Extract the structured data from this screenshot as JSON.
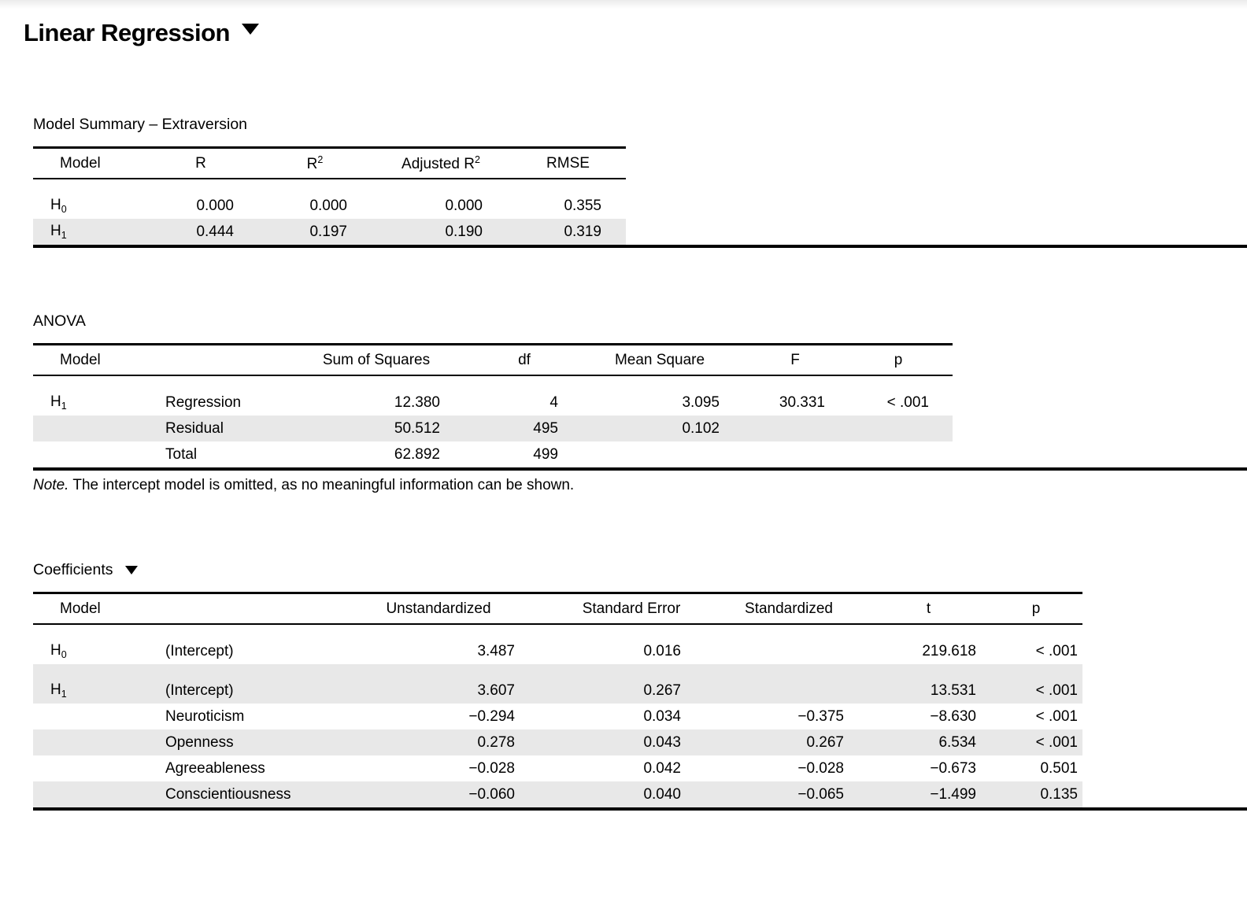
{
  "page": {
    "title": "Linear Regression"
  },
  "model_summary": {
    "title": "Model Summary – Extraversion",
    "headers": {
      "model": "Model",
      "r": "R",
      "r2": {
        "base": "R",
        "sup": "2"
      },
      "adj_r2": {
        "base": "Adjusted R",
        "sup": "2"
      },
      "rmse": "RMSE"
    },
    "rows": [
      {
        "model": {
          "base": "H",
          "sub": "0"
        },
        "r": "0.000",
        "r2": "0.000",
        "adj_r2": "0.000",
        "rmse": "0.355"
      },
      {
        "model": {
          "base": "H",
          "sub": "1"
        },
        "r": "0.444",
        "r2": "0.197",
        "adj_r2": "0.190",
        "rmse": "0.319"
      }
    ]
  },
  "anova": {
    "title": "ANOVA",
    "headers": {
      "model": "Model",
      "ss": "Sum of Squares",
      "df": "df",
      "ms": "Mean Square",
      "f": "F",
      "p": "p"
    },
    "rows": [
      {
        "model": {
          "base": "H",
          "sub": "1"
        },
        "term": "Regression",
        "ss": "12.380",
        "df": "4",
        "ms": "3.095",
        "f": "30.331",
        "p": "< .001"
      },
      {
        "term": "Residual",
        "ss": "50.512",
        "df": "495",
        "ms": "0.102"
      },
      {
        "term": "Total",
        "ss": "62.892",
        "df": "499"
      }
    ],
    "note_label": "Note.",
    "note_text": " The intercept model is omitted, as no meaningful information can be shown."
  },
  "coefficients": {
    "title": "Coefficients",
    "headers": {
      "model": "Model",
      "unstd": "Unstandardized",
      "se": "Standard Error",
      "std": "Standardized",
      "t": "t",
      "p": "p"
    },
    "rows": [
      {
        "model": {
          "base": "H",
          "sub": "0"
        },
        "term": "(Intercept)",
        "unstd": "3.487",
        "se": "0.016",
        "std": "",
        "t": "219.618",
        "p": "< .001"
      },
      {
        "model": {
          "base": "H",
          "sub": "1"
        },
        "term": "(Intercept)",
        "unstd": "3.607",
        "se": "0.267",
        "std": "",
        "t": "13.531",
        "p": "< .001"
      },
      {
        "term": "Neuroticism",
        "unstd": "−0.294",
        "se": "0.034",
        "std": "−0.375",
        "t": "−8.630",
        "p": "< .001"
      },
      {
        "term": "Openness",
        "unstd": "0.278",
        "se": "0.043",
        "std": "0.267",
        "t": "6.534",
        "p": "< .001"
      },
      {
        "term": "Agreeableness",
        "unstd": "−0.028",
        "se": "0.042",
        "std": "−0.028",
        "t": "−0.673",
        "p": "0.501"
      },
      {
        "term": "Conscientiousness",
        "unstd": "−0.060",
        "se": "0.040",
        "std": "−0.065",
        "t": "−1.499",
        "p": "0.135"
      }
    ]
  }
}
